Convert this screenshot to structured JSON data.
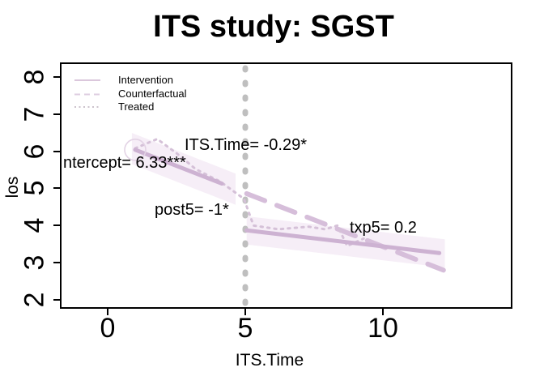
{
  "title": "ITS study: SGST",
  "axes": {
    "x": {
      "label": "ITS.Time",
      "ticks": [
        "0",
        "5",
        "10"
      ],
      "tick_values": [
        0,
        5,
        10
      ]
    },
    "y": {
      "label": "los",
      "ticks": [
        "2",
        "3",
        "4",
        "5",
        "6",
        "7",
        "8"
      ],
      "tick_values": [
        2,
        3,
        4,
        5,
        6,
        7,
        8
      ]
    }
  },
  "legend": {
    "items": [
      {
        "label": "Intervention",
        "style": "solid"
      },
      {
        "label": "Counterfactual",
        "style": "dashed"
      },
      {
        "label": "Treated",
        "style": "dotted"
      }
    ]
  },
  "annotations": [
    {
      "text": "ITS.Time= -0.29*"
    },
    {
      "text": "ntercept= 6.33***"
    },
    {
      "text": "post5= -1*"
    },
    {
      "text": "txp5= 0.2"
    }
  ],
  "colors": {
    "line": "#CDB2D2",
    "counterfactual": "#D6BEDA",
    "treated": "#D5C1D8",
    "band": "#F6EEF7",
    "vline": "#BFBFBF",
    "marker": "#E3D3E5",
    "axis": "#000000",
    "legend_solid": "#DBC7DC",
    "legend_dashed": "#DECDE0",
    "legend_dotted": "#CDC3CD"
  },
  "chart_data": {
    "type": "line",
    "title": "ITS study: SGST",
    "xlabel": "ITS.Time",
    "ylabel": "los",
    "xlim": [
      -1.7,
      14.7
    ],
    "ylim": [
      1.8,
      8.4
    ],
    "x_ticks": [
      0,
      5,
      10
    ],
    "y_ticks": [
      2,
      3,
      4,
      5,
      6,
      7,
      8
    ],
    "intervention_time": 5,
    "model": {
      "intercept": 6.33,
      "intercept_sig": "***",
      "its_time_slope": -0.29,
      "its_time_sig": "*",
      "post5": -1,
      "post5_sig": "*",
      "txp5": 0.2,
      "txp5_sig": ""
    },
    "series": [
      {
        "name": "Intervention",
        "style": "solid",
        "segments": [
          {
            "x": [
              1.0,
              4.15
            ],
            "y": [
              6.04,
              5.13
            ]
          },
          {
            "x": [
              5.05,
              12.05
            ],
            "y": [
              3.87,
              3.26
            ]
          }
        ]
      },
      {
        "name": "Counterfactual",
        "style": "dashed",
        "x": [
          5.05,
          12.2
        ],
        "y": [
          4.86,
          2.8
        ]
      },
      {
        "name": "Treated",
        "style": "dotted",
        "x": [
          1.0,
          1.8,
          2.5,
          3.2,
          4.1,
          4.95,
          5.3,
          6.2,
          7.3,
          7.9,
          8.35,
          8.7,
          9.3
        ],
        "y": [
          6.08,
          6.33,
          5.95,
          5.52,
          5.18,
          4.72,
          4.0,
          3.9,
          3.97,
          3.9,
          4.0,
          3.45,
          3.65
        ]
      }
    ],
    "bands": [
      {
        "for": "pre-intervention",
        "x": [
          0.88,
          4.65
        ],
        "y_center": [
          6.075,
          4.98
        ],
        "half_width": 0.42
      },
      {
        "for": "post-intervention",
        "x": [
          5.05,
          12.25
        ],
        "y_center": [
          3.87,
          3.25
        ],
        "half_width": 0.38
      }
    ],
    "marker": {
      "shape": "circle",
      "x": 1.0,
      "y": 6.04
    },
    "vline_x": 5,
    "legend_position": "top-left",
    "grid": false
  }
}
